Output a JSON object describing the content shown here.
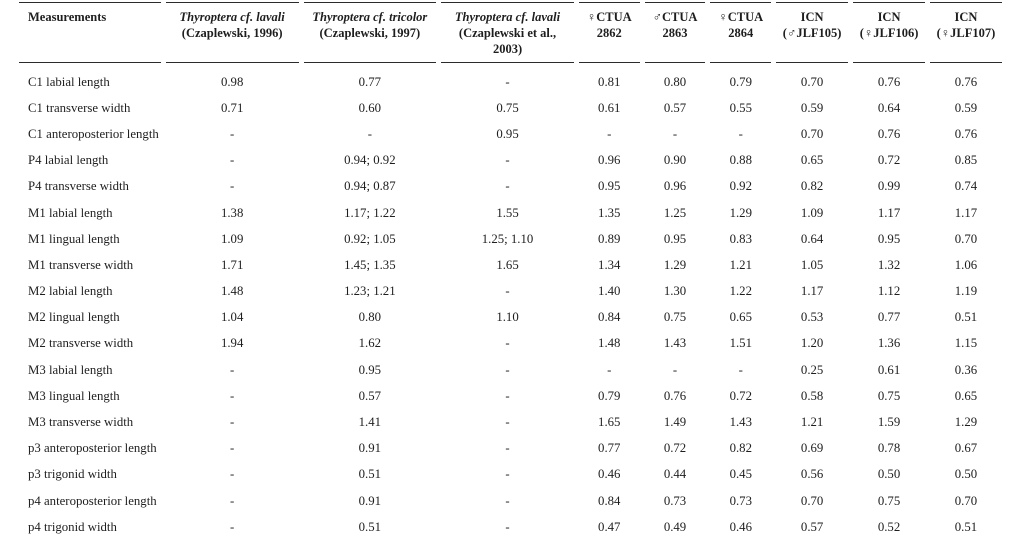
{
  "table": {
    "columns": [
      {
        "label": "Measurements"
      },
      {
        "taxon": "Thyroptera cf. lavali",
        "citation": "(Czaplewski, 1996)"
      },
      {
        "taxon": "Thyroptera cf. tricolor",
        "citation": "(Czaplewski, 1997)"
      },
      {
        "taxon": "Thyroptera cf. lavali",
        "citation": "(Czaplewski et al.,",
        "citation2": "2003)"
      },
      {
        "line1": "♀CTUA",
        "line2": "2862"
      },
      {
        "line1": "♂CTUA",
        "line2": "2863"
      },
      {
        "line1": "♀CTUA",
        "line2": "2864"
      },
      {
        "line1": "ICN",
        "line2": "(♂JLF105)"
      },
      {
        "line1": "ICN",
        "line2": "(♀JLF106)"
      },
      {
        "line1": "ICN",
        "line2": "(♀JLF107)"
      }
    ],
    "rows": [
      {
        "label": "C1 labial length",
        "values": [
          "0.98",
          "0.77",
          "-",
          "0.81",
          "0.80",
          "0.79",
          "0.70",
          "0.76",
          "0.76"
        ]
      },
      {
        "label": "C1 transverse width",
        "values": [
          "0.71",
          "0.60",
          "0.75",
          "0.61",
          "0.57",
          "0.55",
          "0.59",
          "0.64",
          "0.59"
        ]
      },
      {
        "label": "C1 anteroposterior length",
        "values": [
          "-",
          "-",
          "0.95",
          "-",
          "-",
          "-",
          "0.70",
          "0.76",
          "0.76"
        ]
      },
      {
        "label": "P4 labial length",
        "values": [
          "-",
          "0.94; 0.92",
          "-",
          "0.96",
          "0.90",
          "0.88",
          "0.65",
          "0.72",
          "0.85"
        ]
      },
      {
        "label": "P4 transverse width",
        "values": [
          "-",
          "0.94; 0.87",
          "-",
          "0.95",
          "0.96",
          "0.92",
          "0.82",
          "0.99",
          "0.74"
        ]
      },
      {
        "label": "M1 labial length",
        "values": [
          "1.38",
          "1.17; 1.22",
          "1.55",
          "1.35",
          "1.25",
          "1.29",
          "1.09",
          "1.17",
          "1.17"
        ]
      },
      {
        "label": "M1 lingual length",
        "values": [
          "1.09",
          "0.92; 1.05",
          "1.25; 1.10",
          "0.89",
          "0.95",
          "0.83",
          "0.64",
          "0.95",
          "0.70"
        ]
      },
      {
        "label": "M1 transverse width",
        "values": [
          "1.71",
          "1.45; 1.35",
          "1.65",
          "1.34",
          "1.29",
          "1.21",
          "1.05",
          "1.32",
          "1.06"
        ]
      },
      {
        "label": "M2 labial length",
        "values": [
          "1.48",
          "1.23; 1.21",
          "-",
          "1.40",
          "1.30",
          "1.22",
          "1.17",
          "1.12",
          "1.19"
        ]
      },
      {
        "label": "M2 lingual length",
        "values": [
          "1.04",
          "0.80",
          "1.10",
          "0.84",
          "0.75",
          "0.65",
          "0.53",
          "0.77",
          "0.51"
        ]
      },
      {
        "label": "M2 transverse width",
        "values": [
          "1.94",
          "1.62",
          "-",
          "1.48",
          "1.43",
          "1.51",
          "1.20",
          "1.36",
          "1.15"
        ]
      },
      {
        "label": "M3 labial length",
        "values": [
          "-",
          "0.95",
          "-",
          "-",
          "-",
          "-",
          "0.25",
          "0.61",
          "0.36"
        ]
      },
      {
        "label": "M3 lingual length",
        "values": [
          "-",
          "0.57",
          "-",
          "0.79",
          "0.76",
          "0.72",
          "0.58",
          "0.75",
          "0.65"
        ]
      },
      {
        "label": "M3 transverse width",
        "values": [
          "-",
          "1.41",
          "-",
          "1.65",
          "1.49",
          "1.43",
          "1.21",
          "1.59",
          "1.29"
        ]
      },
      {
        "label": "p3 anteroposterior length",
        "values": [
          "-",
          "0.91",
          "-",
          "0.77",
          "0.72",
          "0.82",
          "0.69",
          "0.78",
          "0.67"
        ]
      },
      {
        "label": "p3 trigonid width",
        "values": [
          "-",
          "0.51",
          "-",
          "0.46",
          "0.44",
          "0.45",
          "0.56",
          "0.50",
          "0.50"
        ]
      },
      {
        "label": "p4 anteroposterior length",
        "values": [
          "-",
          "0.91",
          "-",
          "0.84",
          "0.73",
          "0.73",
          "0.70",
          "0.75",
          "0.70"
        ]
      },
      {
        "label": "p4 trigonid width",
        "values": [
          "-",
          "0.51",
          "-",
          "0.47",
          "0.49",
          "0.46",
          "0.57",
          "0.52",
          "0.51"
        ]
      }
    ]
  }
}
